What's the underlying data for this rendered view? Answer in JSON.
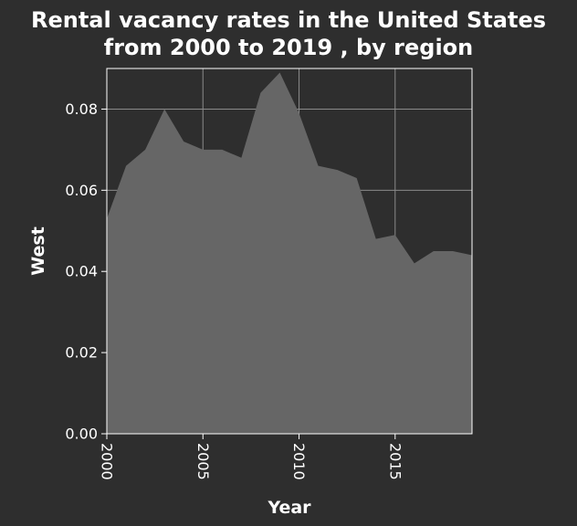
{
  "chart_data": {
    "type": "area",
    "title_lines": [
      "Rental vacancy rates in the United States",
      "from 2000 to 2019 , by region"
    ],
    "xlabel": "Year",
    "ylabel": "West",
    "x": [
      2000,
      2001,
      2002,
      2003,
      2004,
      2005,
      2006,
      2007,
      2008,
      2009,
      2010,
      2011,
      2012,
      2013,
      2014,
      2015,
      2016,
      2017,
      2018,
      2019
    ],
    "series": [
      {
        "values": [
          0.053,
          0.066,
          0.07,
          0.08,
          0.072,
          0.07,
          0.07,
          0.068,
          0.084,
          0.089,
          0.079,
          0.066,
          0.065,
          0.063,
          0.048,
          0.049,
          0.042,
          0.045,
          0.045,
          0.044
        ]
      }
    ],
    "xlim": [
      2000,
      2019
    ],
    "ylim": [
      0,
      0.09
    ],
    "xticks": [
      "2000",
      "2005",
      "2010",
      "2015"
    ],
    "yticks": [
      "0.00",
      "0.02",
      "0.04",
      "0.06",
      "0.08"
    ],
    "grid": true,
    "colors": {
      "background": "#2e2e2e",
      "area": "#666666",
      "grid": "#8a8a8a",
      "text": "#ffffff"
    }
  }
}
